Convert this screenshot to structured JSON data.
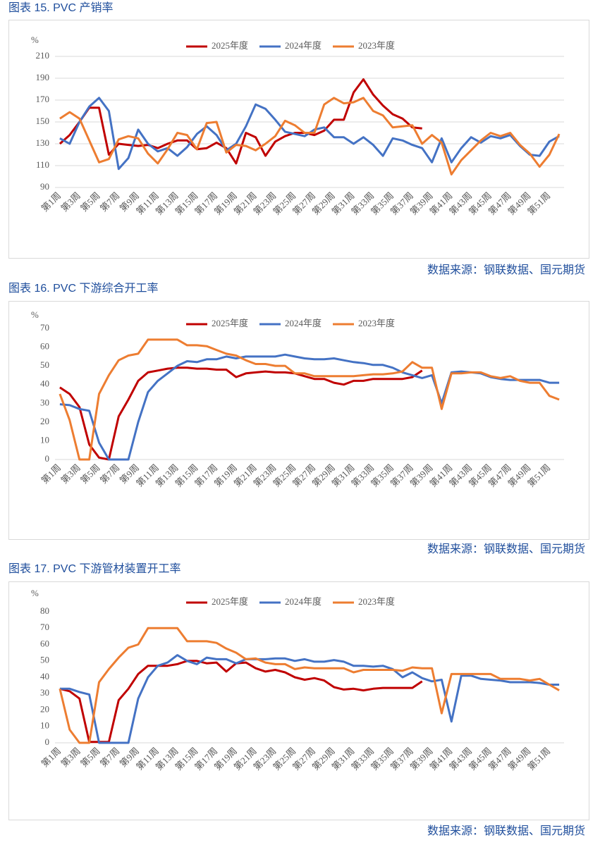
{
  "chart_data": [
    {
      "type": "line",
      "title": "图表 15. PVC 产销率",
      "source": "数据来源：钢联数据、国元期货",
      "y_label": "%",
      "categories": [
        "第1周",
        null,
        "第3周",
        null,
        "第5周",
        null,
        "第7周",
        null,
        "第9周",
        null,
        "第11周",
        null,
        "第13周",
        null,
        "第15周",
        null,
        "第17周",
        null,
        "第19周",
        null,
        "第21周",
        null,
        "第23周",
        null,
        "第25周",
        null,
        "第27周",
        null,
        "第29周",
        null,
        "第31周",
        null,
        "第33周",
        null,
        "第35周",
        null,
        "第37周",
        null,
        "第39周",
        null,
        "第41周",
        null,
        "第43周",
        null,
        "第45周",
        null,
        "第47周",
        null,
        "第49周",
        null,
        "第51周",
        null
      ],
      "ylim": [
        90,
        210
      ],
      "yticks": [
        90,
        110,
        130,
        150,
        170,
        190,
        210
      ],
      "grid": true,
      "series": [
        {
          "name": "2025年度",
          "color": "#c00000",
          "values": [
            130,
            138,
            150,
            163,
            163,
            120,
            130,
            129,
            128,
            129,
            126,
            130,
            133,
            133,
            125,
            126,
            131,
            126,
            112,
            140,
            136,
            119,
            132,
            137,
            140,
            140,
            138,
            142,
            152,
            152,
            177,
            189,
            175,
            165,
            157,
            153,
            145,
            144,
            null,
            null,
            null,
            null,
            null,
            null,
            null,
            null,
            null,
            null,
            null,
            null,
            null,
            null
          ]
        },
        {
          "name": "2024年度",
          "color": "#4472c4",
          "values": [
            135,
            130,
            150,
            164,
            172,
            160,
            107,
            117,
            143,
            130,
            123,
            126,
            119,
            127,
            139,
            146,
            138,
            124,
            130,
            146,
            166,
            162,
            152,
            141,
            139,
            137,
            143,
            145,
            136,
            136,
            130,
            136,
            129,
            119,
            135,
            133,
            129,
            126,
            113,
            135,
            113,
            126,
            136,
            131,
            137,
            135,
            138,
            128,
            120,
            119,
            132,
            137
          ]
        },
        {
          "name": "2023年度",
          "color": "#ed7d31",
          "values": [
            153,
            159,
            153,
            133,
            113,
            116,
            134,
            137,
            135,
            121,
            112,
            125,
            140,
            138,
            125,
            149,
            150,
            122,
            129,
            128,
            124,
            130,
            137,
            151,
            147,
            140,
            140,
            166,
            172,
            167,
            168,
            172,
            160,
            156,
            145,
            146,
            147,
            130,
            138,
            131,
            102,
            115,
            124,
            133,
            140,
            137,
            140,
            129,
            121,
            109,
            120,
            139
          ]
        }
      ]
    },
    {
      "type": "line",
      "title": "图表 16. PVC 下游综合开工率",
      "source": "数据来源：钢联数据、国元期货",
      "y_label": "%",
      "categories": [
        "第1周",
        null,
        "第3周",
        null,
        "第5周",
        null,
        "第7周",
        null,
        "第9周",
        null,
        "第11周",
        null,
        "第13周",
        null,
        "第15周",
        null,
        "第17周",
        null,
        "第19周",
        null,
        "第21周",
        null,
        "第23周",
        null,
        "第25周",
        null,
        "第27周",
        null,
        "第29周",
        null,
        "第31周",
        null,
        "第33周",
        null,
        "第35周",
        null,
        "第37周",
        null,
        "第39周",
        null,
        "第41周",
        null,
        "第43周",
        null,
        "第45周",
        null,
        "第47周",
        null,
        "第49周",
        null,
        "第51周",
        null
      ],
      "ylim": [
        0,
        70
      ],
      "yticks": [
        0,
        10,
        20,
        30,
        40,
        50,
        60,
        70
      ],
      "grid": false,
      "series": [
        {
          "name": "2025年度",
          "color": "#c00000",
          "values": [
            38.5,
            35,
            28,
            8,
            1,
            0,
            23,
            32,
            42,
            46.5,
            47.5,
            48.5,
            49,
            49,
            48.5,
            48.5,
            48,
            48,
            44,
            46,
            46.5,
            47,
            46.5,
            46.5,
            46,
            44.5,
            43,
            43,
            41,
            40,
            42,
            42,
            43,
            43,
            43,
            43,
            44,
            47.5,
            null,
            null,
            null,
            null,
            null,
            null,
            null,
            null,
            null,
            null,
            null,
            null,
            null,
            null
          ]
        },
        {
          "name": "2024年度",
          "color": "#4472c4",
          "values": [
            29.5,
            29,
            27,
            26,
            9,
            0,
            0,
            0,
            20,
            36,
            42,
            46,
            50,
            52.5,
            52,
            53.5,
            53.5,
            55,
            54,
            55,
            55,
            55,
            55,
            56,
            55,
            54,
            53.5,
            53.5,
            54,
            53,
            52,
            51.5,
            50.5,
            50.5,
            49,
            46.5,
            45,
            43.5,
            45,
            30,
            46.5,
            47,
            46.5,
            46,
            44,
            43,
            42.5,
            42.5,
            42.5,
            42.5,
            41,
            41
          ]
        },
        {
          "name": "2023年度",
          "color": "#ed7d31",
          "values": [
            35,
            21,
            0,
            0,
            35,
            45,
            53,
            55.5,
            56.5,
            64,
            64,
            64,
            64,
            61,
            61,
            60.5,
            58.5,
            56.5,
            55.5,
            53,
            51,
            51,
            50,
            50,
            46,
            46,
            44.5,
            44.5,
            44.5,
            44.5,
            44.5,
            45,
            45.5,
            45.5,
            46,
            47,
            52,
            49,
            49,
            27,
            46,
            46,
            46.5,
            46.5,
            44.5,
            43.5,
            44.5,
            42,
            41,
            41,
            34,
            32
          ]
        }
      ]
    },
    {
      "type": "line",
      "title": "图表 17. PVC 下游管材装置开工率",
      "source": "数据来源：钢联数据、国元期货",
      "y_label": "%",
      "categories": [
        "第1周",
        null,
        "第3周",
        null,
        "第5周",
        null,
        "第7周",
        null,
        "第9周",
        null,
        "第11周",
        null,
        "第13周",
        null,
        "第15周",
        null,
        "第17周",
        null,
        "第19周",
        null,
        "第21周",
        null,
        "第23周",
        null,
        "第25周",
        null,
        "第27周",
        null,
        "第29周",
        null,
        "第31周",
        null,
        "第33周",
        null,
        "第35周",
        null,
        "第37周",
        null,
        "第39周",
        null,
        "第41周",
        null,
        "第43周",
        null,
        "第45周",
        null,
        "第47周",
        null,
        "第49周",
        null,
        "第51周",
        null
      ],
      "ylim": [
        0,
        80
      ],
      "yticks": [
        0,
        10,
        20,
        30,
        40,
        50,
        60,
        70,
        80
      ],
      "grid": false,
      "series": [
        {
          "name": "2025年度",
          "color": "#c00000",
          "values": [
            33,
            31.5,
            27,
            0.5,
            0.5,
            0.5,
            26,
            33,
            42,
            47,
            47,
            47,
            48,
            50,
            50,
            48.5,
            49,
            43.5,
            48.5,
            49,
            45.5,
            43.5,
            44.5,
            43,
            40,
            38.5,
            39.5,
            38,
            34,
            32.5,
            33,
            32,
            33,
            33.5,
            33.5,
            33.5,
            33.5,
            37.5,
            null,
            null,
            null,
            null,
            null,
            null,
            null,
            null,
            null,
            null,
            null,
            null,
            null,
            null
          ]
        },
        {
          "name": "2024年度",
          "color": "#4472c4",
          "values": [
            33,
            33,
            31,
            29.5,
            0,
            0,
            0,
            0,
            27,
            40,
            47,
            49,
            53.5,
            50,
            48,
            52,
            51,
            51,
            48.5,
            51,
            51,
            51,
            51.5,
            51.5,
            50,
            51,
            49.5,
            49.5,
            50.5,
            49.5,
            47,
            47,
            46.5,
            47,
            45,
            40,
            43,
            39.5,
            37.5,
            38.5,
            13,
            41,
            41,
            39,
            38.5,
            38,
            37,
            37,
            37,
            36.5,
            35.5,
            35.5
          ]
        },
        {
          "name": "2023年度",
          "color": "#ed7d31",
          "values": [
            33,
            8,
            0,
            0,
            37,
            45,
            52,
            58,
            60,
            70,
            70,
            70,
            70,
            62,
            62,
            62,
            61,
            57.5,
            55,
            51,
            51.5,
            49,
            48,
            48,
            45,
            46,
            45.5,
            45.5,
            45.5,
            45.5,
            43,
            44.5,
            44.5,
            44.5,
            44.5,
            44,
            46,
            45.5,
            45.5,
            18,
            42,
            42,
            42,
            42,
            42,
            39,
            39,
            39,
            38,
            39,
            35.5,
            32
          ]
        }
      ]
    }
  ]
}
